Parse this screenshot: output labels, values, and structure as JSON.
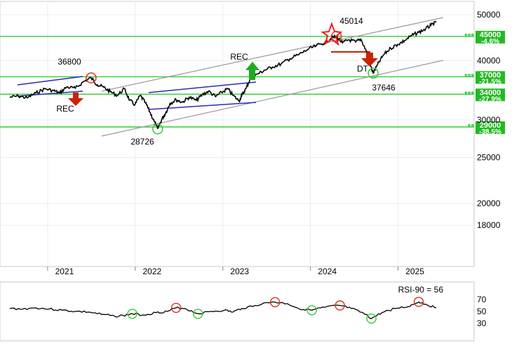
{
  "chart_data": {
    "type": "line",
    "scale": "log",
    "ylim": [
      16000,
      52000
    ],
    "y_ticks": [
      50000,
      40000,
      30000,
      25000,
      20000,
      18000
    ],
    "x_ticks": [
      "2021",
      "2022",
      "2023",
      "2024",
      "2025"
    ],
    "colors": {
      "price": "#000000",
      "level": "#33cc33",
      "channel": "#9a9a9a",
      "trend": "#2b2bb8",
      "up": "#22aa22",
      "down": "#cc2200",
      "peak": "#e03020",
      "trough": "#33cc33"
    },
    "series": [
      {
        "values": [
          [
            2020.55,
            33500
          ],
          [
            2020.65,
            33700
          ],
          [
            2020.75,
            33400
          ],
          [
            2020.85,
            34200
          ],
          [
            2020.95,
            34900
          ],
          [
            2021.05,
            34600
          ],
          [
            2021.12,
            34200
          ],
          [
            2021.2,
            35200
          ],
          [
            2021.3,
            35000
          ],
          [
            2021.4,
            36200
          ],
          [
            2021.48,
            36800
          ],
          [
            2021.55,
            35600
          ],
          [
            2021.62,
            35200
          ],
          [
            2021.7,
            34400
          ],
          [
            2021.78,
            33800
          ],
          [
            2021.86,
            34900
          ],
          [
            2021.92,
            33000
          ],
          [
            2021.98,
            32300
          ],
          [
            2022.04,
            33800
          ],
          [
            2022.1,
            32600
          ],
          [
            2022.15,
            31200
          ],
          [
            2022.2,
            29800
          ],
          [
            2022.24,
            28726
          ],
          [
            2022.29,
            30200
          ],
          [
            2022.33,
            31000
          ],
          [
            2022.38,
            32500
          ],
          [
            2022.45,
            33100
          ],
          [
            2022.52,
            32700
          ],
          [
            2022.6,
            33500
          ],
          [
            2022.68,
            33000
          ],
          [
            2022.75,
            33900
          ],
          [
            2022.82,
            34500
          ],
          [
            2022.9,
            33600
          ],
          [
            2022.97,
            34300
          ],
          [
            2023.04,
            34900
          ],
          [
            2023.1,
            33800
          ],
          [
            2023.17,
            32900
          ],
          [
            2023.2,
            33800
          ],
          [
            2023.25,
            35000
          ],
          [
            2023.3,
            36800
          ],
          [
            2023.38,
            37500
          ],
          [
            2023.46,
            38200
          ],
          [
            2023.55,
            38800
          ],
          [
            2023.65,
            39400
          ],
          [
            2023.75,
            40400
          ],
          [
            2023.85,
            41200
          ],
          [
            2023.95,
            42200
          ],
          [
            2024.05,
            43000
          ],
          [
            2024.15,
            43700
          ],
          [
            2024.22,
            44600
          ],
          [
            2024.28,
            45014
          ],
          [
            2024.35,
            43600
          ],
          [
            2024.42,
            44300
          ],
          [
            2024.5,
            43800
          ],
          [
            2024.56,
            44400
          ],
          [
            2024.62,
            42000
          ],
          [
            2024.66,
            39500
          ],
          [
            2024.7,
            37646
          ],
          [
            2024.75,
            39200
          ],
          [
            2024.82,
            41200
          ],
          [
            2024.9,
            42500
          ],
          [
            2024.98,
            43300
          ],
          [
            2025.06,
            44100
          ],
          [
            2025.14,
            45200
          ],
          [
            2025.22,
            45900
          ],
          [
            2025.3,
            46700
          ],
          [
            2025.36,
            47500
          ],
          [
            2025.42,
            48200
          ]
        ]
      }
    ],
    "levels": [
      {
        "label": "45000",
        "pct": "-4.6%",
        "stars": "***"
      },
      {
        "label": "37000",
        "pct": "-21.5%",
        "stars": "***"
      },
      {
        "label": "34000",
        "pct": "-27.9%",
        "stars": "***"
      },
      {
        "label": "29000",
        "pct": "-38.5%",
        "stars": "**"
      }
    ],
    "annotations": [
      {
        "text": "36800",
        "x": 2021.48,
        "y": 36800
      },
      {
        "text": "REC",
        "x": 2021.52,
        "y": 32600
      },
      {
        "text": "28726",
        "x": 2022.24,
        "y": 28726
      },
      {
        "text": "REC",
        "x": 2023.3,
        "y": 37700
      },
      {
        "text": "45014",
        "x": 2024.28,
        "y": 45014
      },
      {
        "text": "DT",
        "x": 2024.52,
        "y": 40200
      },
      {
        "text": "37646",
        "x": 2024.7,
        "y": 37646
      }
    ],
    "rsi": {
      "label": "RSI-90 = 56",
      "ticks": [
        70,
        50,
        30
      ],
      "values": [
        [
          2020.55,
          55
        ],
        [
          2020.7,
          54
        ],
        [
          2020.85,
          56
        ],
        [
          2021.0,
          54
        ],
        [
          2021.15,
          52
        ],
        [
          2021.3,
          50
        ],
        [
          2021.45,
          49
        ],
        [
          2021.6,
          45
        ],
        [
          2021.75,
          42
        ],
        [
          2021.85,
          43
        ],
        [
          2021.95,
          46
        ],
        [
          2022.08,
          44
        ],
        [
          2022.22,
          48
        ],
        [
          2022.35,
          50
        ],
        [
          2022.45,
          56
        ],
        [
          2022.55,
          55
        ],
        [
          2022.7,
          46
        ],
        [
          2022.85,
          50
        ],
        [
          2023.0,
          52
        ],
        [
          2023.1,
          49
        ],
        [
          2023.2,
          55
        ],
        [
          2023.35,
          60
        ],
        [
          2023.55,
          66
        ],
        [
          2023.72,
          63
        ],
        [
          2023.85,
          55
        ],
        [
          2024.0,
          52
        ],
        [
          2024.15,
          57
        ],
        [
          2024.32,
          60
        ],
        [
          2024.45,
          55
        ],
        [
          2024.6,
          46
        ],
        [
          2024.68,
          38
        ],
        [
          2024.8,
          48
        ],
        [
          2024.95,
          55
        ],
        [
          2025.1,
          58
        ],
        [
          2025.22,
          66
        ],
        [
          2025.3,
          62
        ],
        [
          2025.42,
          56
        ]
      ]
    }
  }
}
